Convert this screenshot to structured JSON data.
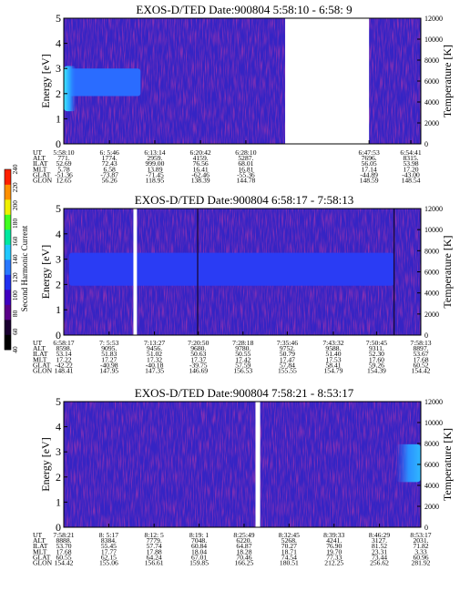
{
  "chart_data": [
    {
      "type": "heatmap",
      "title": "EXOS-D/TED   Date:900804   5:58:10 - 6:58: 9",
      "ylabel": "Energy [eV]",
      "y2label": "Temperature [K]",
      "ylim": [
        0,
        5
      ],
      "yticks": [
        "0",
        "1",
        "2",
        "3",
        "4",
        "5"
      ],
      "y2lim": [
        0,
        12000
      ],
      "y2ticks": [
        "0",
        "2000",
        "4000",
        "6000",
        "8000",
        "10000",
        "12000"
      ],
      "background_color": "#3524c4",
      "band_color": "#2a6cff",
      "band": {
        "e_low": 1.9,
        "e_high": 3.0,
        "t_start": 0.0,
        "t_end": 0.215
      },
      "hot_spot": {
        "t_start": 0.0,
        "t_end": 0.035,
        "e_low": 1.3,
        "e_high": 3.1
      },
      "gaps": [
        [
          0.62,
          0.855
        ]
      ],
      "ephemeris": {
        "labels": [
          "UT",
          "ALT",
          "ILAT",
          "MLT",
          "GLAT",
          "GLON"
        ],
        "columns": [
          {
            "UT": "5:58:10",
            "ALT": "771.",
            "ILAT": "52.69",
            "MLT": "5.78",
            "GLAT": "-51.36",
            "GLON": "12.65"
          },
          {
            "UT": "6: 5:46",
            "ALT": "1774.",
            "ILAT": "72.43",
            "MLT": "6.58",
            "GLAT": "-73.87",
            "GLON": "56.26"
          },
          {
            "UT": "6:13:14",
            "ALT": "2959.",
            "ILAT": "999.00",
            "MLT": "13.89",
            "GLAT": "-71.45",
            "GLON": "118.95"
          },
          {
            "UT": "6:20:42",
            "ALT": "4159.",
            "ILAT": "76.56",
            "MLT": "16.41",
            "GLAT": "-62.46",
            "GLON": "138.39"
          },
          {
            "UT": "6:28:10",
            "ALT": "5287.",
            "ILAT": "68.01",
            "MLT": "16.81",
            "GLAT": "-55.36",
            "GLON": "144.78"
          },
          {
            "UT": "6:47:53",
            "ALT": "7696.",
            "ILAT": "56.05",
            "MLT": "17.14",
            "GLAT": "-44.89",
            "GLON": "148.59"
          },
          {
            "UT": "6:54:41",
            "ALT": "8315.",
            "ILAT": "53.98",
            "MLT": "17.20",
            "GLAT": "-43.00",
            "GLON": "148.54"
          }
        ],
        "column_positions": [
          0.0,
          0.128,
          0.255,
          0.383,
          0.51,
          0.855,
          0.972
        ]
      }
    },
    {
      "type": "heatmap",
      "title": "EXOS-D/TED   Date:900804   6:58:17 - 7:58:13",
      "ylabel": "Energy [eV]",
      "y2label": "Temperature [K]",
      "ylim": [
        0,
        5
      ],
      "yticks": [
        "0",
        "1",
        "2",
        "3",
        "4",
        "5"
      ],
      "y2lim": [
        0,
        12000
      ],
      "y2ticks": [
        "0",
        "2000",
        "4000",
        "6000",
        "8000",
        "10000",
        "12000"
      ],
      "background_color": "#3524c4",
      "band_color": "#2a3cf4",
      "band": {
        "e_low": 1.95,
        "e_high": 3.25,
        "t_start": 0.015,
        "t_end": 0.925
      },
      "gaps": [
        [
          0.195,
          0.205
        ]
      ],
      "dark_lines": [
        0.375,
        0.925
      ],
      "ephemeris": {
        "labels": [
          "UT",
          "ALT",
          "ILAT",
          "MLT",
          "GLAT",
          "GLON"
        ],
        "columns": [
          {
            "UT": "6:58:17",
            "ALT": "8598.",
            "ILAT": "53.14",
            "MLT": "17.22",
            "GLAT": "-42.22",
            "GLON": "148.41"
          },
          {
            "UT": "7: 5:53",
            "ALT": "9095.",
            "ILAT": "51.83",
            "MLT": "17.27",
            "GLAT": "-40.98",
            "GLON": "147.95"
          },
          {
            "UT": "7:13:27",
            "ALT": "9456.",
            "ILAT": "51.02",
            "MLT": "17.32",
            "GLAT": "-40.18",
            "GLON": "147.35"
          },
          {
            "UT": "7:20:50",
            "ALT": "9680.",
            "ILAT": "50.63",
            "MLT": "17.37",
            "GLAT": "-39.75",
            "GLON": "146.69"
          },
          {
            "UT": "7:28:18",
            "ALT": "9780.",
            "ILAT": "50.55",
            "MLT": "17.42",
            "GLAT": "57.59",
            "GLON": "156.53"
          },
          {
            "UT": "7:35:46",
            "ALT": "9752.",
            "ILAT": "50.79",
            "MLT": "17.47",
            "GLAT": "57.84",
            "GLON": "155.55"
          },
          {
            "UT": "7:43:32",
            "ALT": "9588.",
            "ILAT": "51.40",
            "MLT": "17.53",
            "GLAT": "58.41",
            "GLON": "154.79"
          },
          {
            "UT": "7:50:45",
            "ALT": "9311.",
            "ILAT": "52.30",
            "MLT": "17.60",
            "GLAT": "59.26",
            "GLON": "154.39"
          },
          {
            "UT": "7:58:13",
            "ALT": "8897.",
            "ILAT": "53.67",
            "MLT": "17.68",
            "GLAT": "60.52",
            "GLON": "154.42"
          }
        ],
        "column_positions": [
          0.0,
          0.127,
          0.254,
          0.377,
          0.502,
          0.626,
          0.755,
          0.876,
          1.0
        ]
      }
    },
    {
      "type": "heatmap",
      "title": "EXOS-D/TED   Date:900804   7:58:21 - 8:53:17",
      "ylabel": "Energy [eV]",
      "y2label": "Temperature [K]",
      "ylim": [
        0,
        5
      ],
      "yticks": [
        "0",
        "1",
        "2",
        "3",
        "4",
        "5"
      ],
      "y2lim": [
        0,
        12000
      ],
      "y2ticks": [
        "0",
        "2000",
        "4000",
        "6000",
        "8000",
        "10000",
        "12000"
      ],
      "background_color": "#3524c4",
      "hot_spot": {
        "t_start": 0.93,
        "t_end": 1.0,
        "e_low": 1.8,
        "e_high": 3.3
      },
      "gaps": [
        [
          0.537,
          0.55
        ]
      ],
      "ephemeris": {
        "labels": [
          "UT",
          "ALT",
          "ILAT",
          "MLT",
          "GLAT",
          "GLON"
        ],
        "columns": [
          {
            "UT": "7:58:21",
            "ALT": "8888.",
            "ILAT": "53.70",
            "MLT": "17.68",
            "GLAT": "60.55",
            "GLON": "154.42"
          },
          {
            "UT": "8: 5:17",
            "ALT": "8384.",
            "ILAT": "55.45",
            "MLT": "17.77",
            "GLAT": "62.15",
            "GLON": "155.06"
          },
          {
            "UT": "8:12: 5",
            "ALT": "7779.",
            "ILAT": "57.74",
            "MLT": "17.88",
            "GLAT": "64.24",
            "GLON": "156.61"
          },
          {
            "UT": "8:19: 1",
            "ALT": "7048.",
            "ILAT": "60.84",
            "MLT": "18.04",
            "GLAT": "67.01",
            "GLON": "159.85"
          },
          {
            "UT": "8:25:49",
            "ALT": "6220.",
            "ILAT": "64.87",
            "MLT": "18.28",
            "GLAT": "70.46",
            "GLON": "166.25"
          },
          {
            "UT": "8:32:45",
            "ALT": "5268.",
            "ILAT": "70.27",
            "MLT": "18.71",
            "GLAT": "74.54",
            "GLON": "180.51"
          },
          {
            "UT": "8:39:33",
            "ALT": "4241.",
            "ILAT": "76.90",
            "MLT": "19.70",
            "GLAT": "77.33",
            "GLON": "212.25"
          },
          {
            "UT": "8:46:29",
            "ALT": "3127.",
            "ILAT": "81.52",
            "MLT": "23.31",
            "GLAT": "73.44",
            "GLON": "256.62"
          },
          {
            "UT": "8:53:17",
            "ALT": "2031.",
            "ILAT": "71.82",
            "MLT": "3.33",
            "GLAT": "60.96",
            "GLON": "281.92"
          }
        ],
        "column_positions": [
          0.0,
          0.126,
          0.253,
          0.379,
          0.505,
          0.631,
          0.757,
          0.884,
          1.0
        ]
      }
    }
  ],
  "colorbar": {
    "label": "Second Harmonic Current",
    "ticks": [
      "40",
      "60",
      "80",
      "100",
      "120",
      "140",
      "160",
      "180",
      "200",
      "220",
      "240"
    ],
    "range": [
      40,
      240
    ],
    "colors": [
      "#000000",
      "#1a0030",
      "#5a0088",
      "#4000c0",
      "#2030f0",
      "#2878ff",
      "#20c8ff",
      "#00e8a0",
      "#40ff20",
      "#f0f000",
      "#ff9000",
      "#ff2000"
    ]
  }
}
